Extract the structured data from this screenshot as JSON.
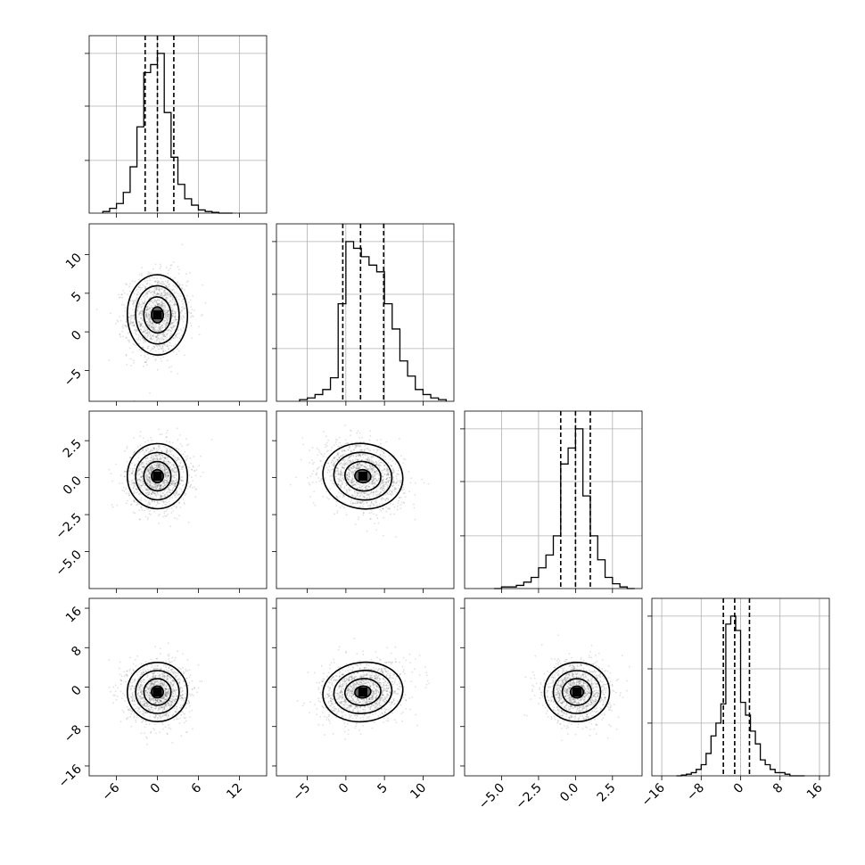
{
  "chart_data": {
    "type": "corner",
    "n_params": 4,
    "params": [
      {
        "range": [
          -10,
          16
        ],
        "ticks": [
          -6,
          0,
          6,
          12
        ],
        "tick_labels": [
          "−6",
          "0",
          "6",
          "12"
        ],
        "center": 0.0,
        "sigma": 2.2,
        "quantiles": [
          -1.8,
          0.0,
          2.4
        ]
      },
      {
        "range": [
          -9,
          14
        ],
        "ticks": [
          -5,
          0,
          5,
          10
        ],
        "tick_labels": [
          "−5",
          "0",
          "5",
          "10"
        ],
        "center": 2.2,
        "sigma": 2.6,
        "quantiles": [
          -0.4,
          1.9,
          4.9
        ]
      },
      {
        "range": [
          -7.5,
          4.5
        ],
        "ticks": [
          -5.0,
          -2.5,
          0.0,
          2.5
        ],
        "tick_labels": [
          "−5.0",
          "−2.5",
          "0.0",
          "2.5"
        ],
        "center": 0.1,
        "sigma": 1.1,
        "quantiles": [
          -1.0,
          0.0,
          1.0
        ]
      },
      {
        "range": [
          -18,
          18
        ],
        "ticks": [
          -16,
          -8,
          0,
          8,
          16
        ],
        "tick_labels": [
          "−16",
          "−8",
          "0",
          "8",
          "16"
        ],
        "center": -1.0,
        "sigma": 3.0,
        "quantiles": [
          -3.5,
          -1.2,
          1.8
        ]
      }
    ],
    "diag_histograms": [
      {
        "param": 0,
        "bin_edges": [
          -8,
          -7,
          -6,
          -5,
          -4,
          -3,
          -2,
          -1,
          0,
          1,
          2,
          3,
          4,
          5,
          6,
          7,
          8,
          9,
          10,
          11
        ],
        "counts": [
          0.01,
          0.03,
          0.06,
          0.13,
          0.29,
          0.54,
          0.88,
          0.93,
          1.0,
          0.63,
          0.35,
          0.18,
          0.09,
          0.05,
          0.02,
          0.01,
          0.005,
          0.0,
          0.0
        ]
      },
      {
        "param": 1,
        "bin_edges": [
          -6,
          -5,
          -4,
          -3,
          -2,
          -1,
          0,
          1,
          2,
          3,
          4,
          5,
          6,
          7,
          8,
          9,
          10,
          11,
          12,
          13
        ],
        "counts": [
          0.01,
          0.02,
          0.04,
          0.07,
          0.14,
          0.58,
          0.95,
          0.91,
          0.86,
          0.81,
          0.77,
          0.58,
          0.43,
          0.24,
          0.15,
          0.07,
          0.04,
          0.02,
          0.01
        ]
      },
      {
        "param": 2,
        "bin_edges": [
          -5.5,
          -5.0,
          -4.5,
          -4.0,
          -3.5,
          -3.0,
          -2.5,
          -2.0,
          -1.5,
          -1.0,
          -0.5,
          0.0,
          0.5,
          1.0,
          1.5,
          2.0,
          2.5,
          3.0,
          3.5,
          4.0
        ],
        "counts": [
          0.0,
          0.01,
          0.01,
          0.02,
          0.04,
          0.07,
          0.13,
          0.21,
          0.33,
          0.78,
          0.88,
          1.0,
          0.58,
          0.33,
          0.18,
          0.07,
          0.03,
          0.01,
          0.0
        ]
      },
      {
        "param": 3,
        "bin_edges": [
          -13,
          -12,
          -11,
          -10,
          -9,
          -8,
          -7,
          -6,
          -5,
          -4,
          -3,
          -2,
          -1,
          0,
          1,
          2,
          3,
          4,
          5,
          6,
          7,
          8,
          9,
          10,
          11,
          12,
          13
        ],
        "counts": [
          0.0,
          0.005,
          0.01,
          0.02,
          0.04,
          0.07,
          0.14,
          0.25,
          0.33,
          0.45,
          0.95,
          1.0,
          0.91,
          0.46,
          0.38,
          0.28,
          0.2,
          0.1,
          0.07,
          0.04,
          0.02,
          0.02,
          0.01,
          0.0,
          0.0,
          0.0
        ]
      }
    ],
    "pair_correlations": {
      "1_0": 0.05,
      "2_0": 0.02,
      "2_1": -0.25,
      "3_0": 0.0,
      "3_1": 0.2,
      "3_2": 0.0
    },
    "contour_levels": 3,
    "scatter_points_per_panel": 1400,
    "grid": true
  }
}
